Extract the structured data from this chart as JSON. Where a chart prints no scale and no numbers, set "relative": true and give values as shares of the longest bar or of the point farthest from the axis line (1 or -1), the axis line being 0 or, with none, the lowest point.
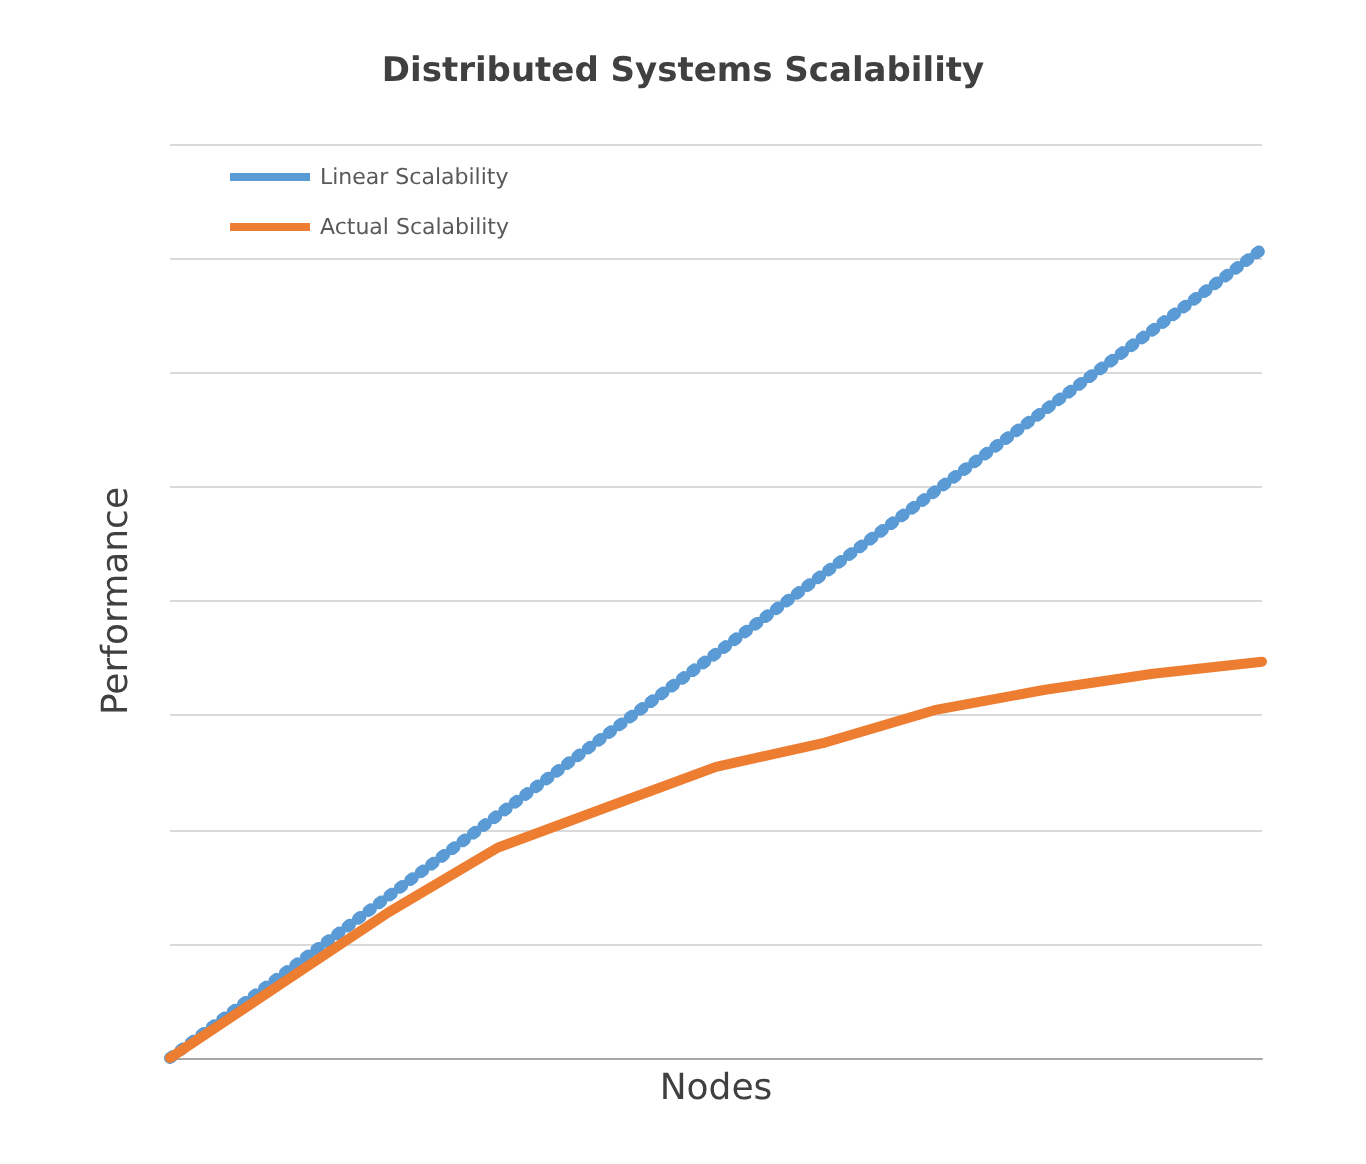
{
  "chart_data": {
    "type": "line",
    "title": "Distributed Systems Scalability",
    "xlabel": "Nodes",
    "ylabel": "Performance",
    "relative": true,
    "categories": [
      null,
      null,
      null,
      null,
      null,
      null,
      null,
      null,
      null,
      null,
      null
    ],
    "series": [
      {
        "name": "Linear Scalability",
        "color": "#5b9bd5",
        "line_style": "dotted",
        "values": [
          0,
          0.1,
          0.2,
          0.3,
          0.4,
          0.5,
          0.6,
          0.7,
          0.8,
          0.9,
          1
        ]
      },
      {
        "name": "Actual Scalability",
        "color": "#ed7d31",
        "line_style": "solid",
        "values": [
          0,
          0.09,
          0.18,
          0.26,
          0.31,
          0.36,
          0.39,
          0.43,
          0.455,
          0.475,
          0.49
        ]
      }
    ],
    "grid": "y",
    "legend": "top left",
    "marker": "none"
  }
}
